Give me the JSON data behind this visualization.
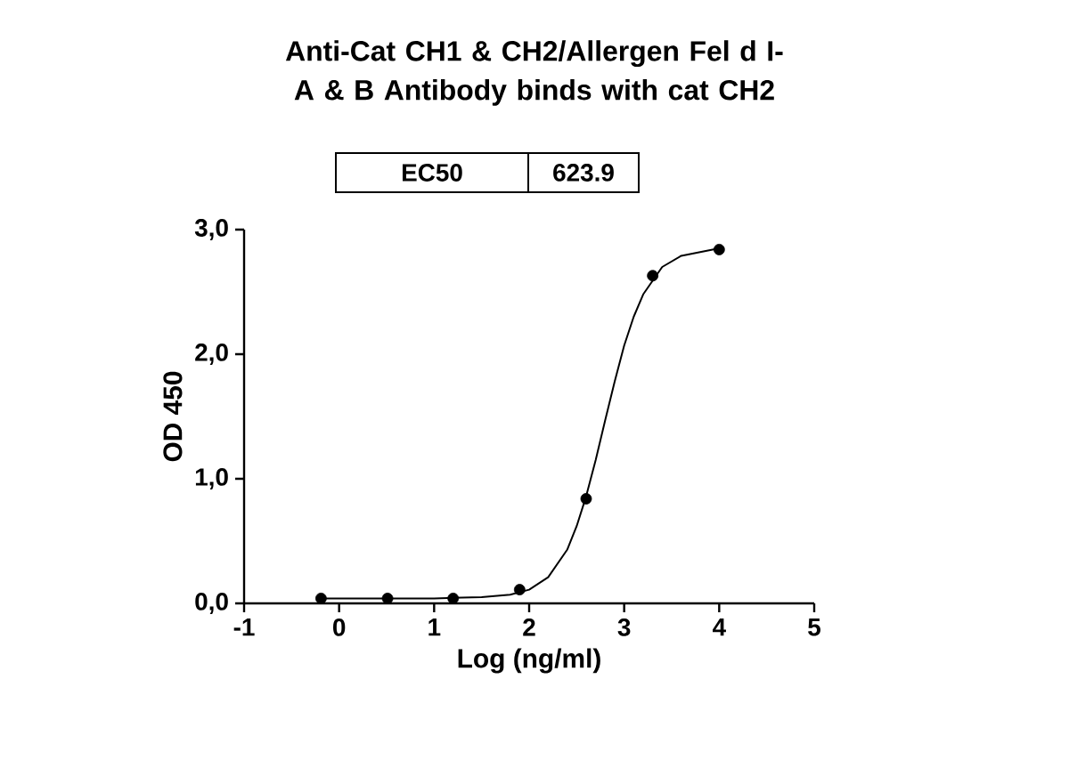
{
  "chart_data": {
    "type": "scatter",
    "title": "Anti-Cat CH1 & CH2/Allergen Fel d I-A & B Antibody binds with cat CH2",
    "xlabel": "Log (ng/ml)",
    "ylabel": "OD 450",
    "annotations": [
      "EC50",
      "623.9"
    ],
    "xlim": [
      -1,
      5
    ],
    "ylim": [
      0,
      3
    ],
    "xticks": [
      -1,
      0,
      1,
      2,
      3,
      4,
      5
    ],
    "yticks": [
      {
        "value": 0,
        "label": "0,0"
      },
      {
        "value": 1,
        "label": "1,0"
      },
      {
        "value": 2,
        "label": "2,0"
      },
      {
        "value": 3,
        "label": "3,0"
      }
    ],
    "series": [
      {
        "type": "line",
        "color": "#000000",
        "marker": "none",
        "x": [
          -0.2,
          1.0,
          1.5,
          1.8,
          2.0,
          2.2,
          2.4,
          2.5,
          2.6,
          2.7,
          2.8,
          2.9,
          3.0,
          3.1,
          3.2,
          3.4,
          3.6,
          4.0
        ],
        "values": [
          0.04,
          0.04,
          0.05,
          0.07,
          0.11,
          0.21,
          0.43,
          0.62,
          0.86,
          1.15,
          1.47,
          1.78,
          2.07,
          2.3,
          2.48,
          2.7,
          2.79,
          2.85
        ]
      },
      {
        "color": "#000000",
        "marker": "circle",
        "x": [
          -0.19,
          0.51,
          1.2,
          1.9,
          2.6,
          3.3,
          4.0
        ],
        "values": [
          0.04,
          0.04,
          0.04,
          0.11,
          0.84,
          2.63,
          2.84
        ]
      }
    ]
  }
}
